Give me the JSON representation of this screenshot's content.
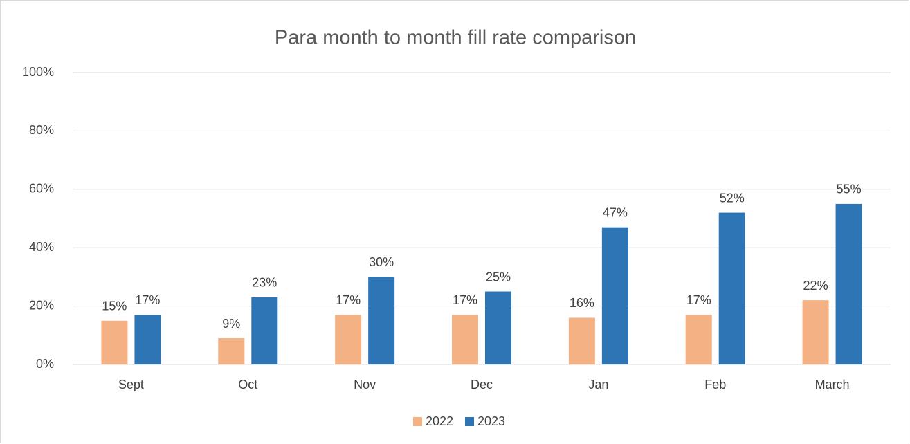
{
  "chart_data": {
    "type": "bar",
    "title": "Para month to month fill rate comparison",
    "categories": [
      "Sept",
      "Oct",
      "Nov",
      "Dec",
      "Jan",
      "Feb",
      "March"
    ],
    "series": [
      {
        "name": "2022",
        "color": "#f4b183",
        "values": [
          15,
          9,
          17,
          17,
          16,
          17,
          22
        ],
        "value_labels": [
          "15%",
          "9%",
          "17%",
          "17%",
          "16%",
          "17%",
          "22%"
        ]
      },
      {
        "name": "2023",
        "color": "#2e75b6",
        "values": [
          17,
          23,
          30,
          25,
          47,
          52,
          55
        ],
        "value_labels": [
          "17%",
          "23%",
          "30%",
          "25%",
          "47%",
          "52%",
          "55%"
        ]
      }
    ],
    "ylim": [
      0,
      100
    ],
    "yticks": [
      {
        "value": 0,
        "label": "0%"
      },
      {
        "value": 20,
        "label": "20%"
      },
      {
        "value": 40,
        "label": "40%"
      },
      {
        "value": 60,
        "label": "60%"
      },
      {
        "value": 80,
        "label": "80%"
      },
      {
        "value": 100,
        "label": "100%"
      }
    ],
    "grid": true,
    "legend": "bottom"
  }
}
